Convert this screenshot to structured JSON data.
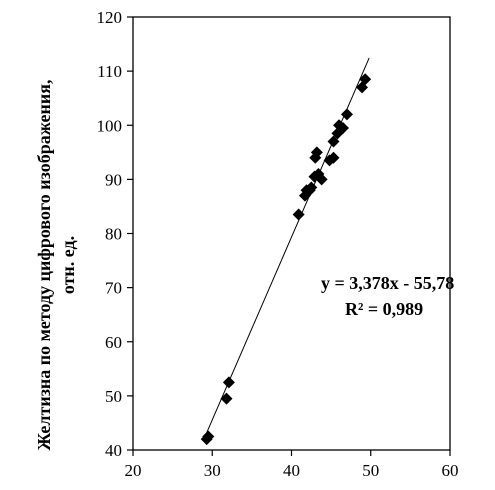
{
  "chart_data": {
    "type": "scatter",
    "title": "",
    "xlabel": "",
    "ylabel_line1": "Желтизна по методу цифрового изображения,",
    "ylabel_line2": "отн. ед.",
    "xlim": [
      20,
      60
    ],
    "ylim": [
      40,
      120
    ],
    "xticks": [
      20,
      30,
      40,
      50,
      60
    ],
    "yticks": [
      40,
      50,
      60,
      70,
      80,
      90,
      100,
      110,
      120
    ],
    "grid": false,
    "legend": "none",
    "marker": "diamond",
    "points": [
      {
        "x": 29.3,
        "y": 42.0
      },
      {
        "x": 29.5,
        "y": 42.5
      },
      {
        "x": 31.8,
        "y": 49.5
      },
      {
        "x": 32.1,
        "y": 52.5
      },
      {
        "x": 40.9,
        "y": 83.5
      },
      {
        "x": 41.7,
        "y": 87.0
      },
      {
        "x": 41.9,
        "y": 88.0
      },
      {
        "x": 42.3,
        "y": 88.0
      },
      {
        "x": 42.5,
        "y": 88.5
      },
      {
        "x": 42.9,
        "y": 90.5
      },
      {
        "x": 43.0,
        "y": 94.0
      },
      {
        "x": 43.2,
        "y": 95.0
      },
      {
        "x": 43.4,
        "y": 91.0
      },
      {
        "x": 43.8,
        "y": 90.0
      },
      {
        "x": 44.8,
        "y": 93.5
      },
      {
        "x": 45.3,
        "y": 94.0
      },
      {
        "x": 45.3,
        "y": 97.0
      },
      {
        "x": 45.8,
        "y": 98.5
      },
      {
        "x": 46.0,
        "y": 100.0
      },
      {
        "x": 46.5,
        "y": 99.5
      },
      {
        "x": 47.0,
        "y": 102.0
      },
      {
        "x": 48.9,
        "y": 107.0
      },
      {
        "x": 49.3,
        "y": 108.5
      }
    ],
    "trendline": {
      "slope": 3.378,
      "intercept": -55.78,
      "x_range": [
        29.0,
        49.8
      ],
      "equation_label": "y = 3,378x - 55,78",
      "r2_label": "R² = 0,989"
    }
  }
}
